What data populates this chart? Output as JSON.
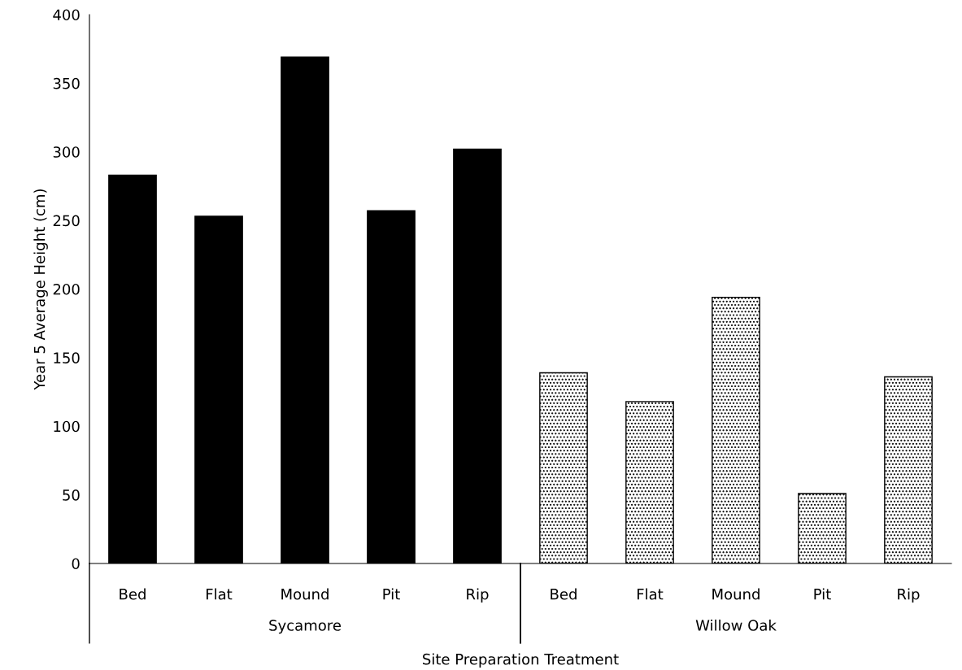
{
  "chart_data": {
    "type": "bar",
    "xlabel": "Site Preparation Treatment",
    "ylabel": "Year 5 Average Height (cm)",
    "categories": [
      "Bed",
      "Flat",
      "Mound",
      "Pit",
      "Rip",
      "Bed",
      "Flat",
      "Mound",
      "Pit",
      "Rip"
    ],
    "annotations": [
      "Sycamore",
      "Willow Oak"
    ],
    "series": [
      {
        "color": "#000000",
        "values": [
          283,
          253,
          369,
          257,
          302,
          null,
          null,
          null,
          null,
          null
        ]
      },
      {
        "color": "#000000",
        "values": [
          null,
          null,
          null,
          null,
          null,
          139,
          118,
          194,
          51,
          136
        ]
      }
    ],
    "ylim": [
      0,
      400
    ],
    "yticks": [
      0,
      50,
      100,
      150,
      200,
      250,
      300,
      350,
      400
    ],
    "grid": false,
    "legend": false
  }
}
